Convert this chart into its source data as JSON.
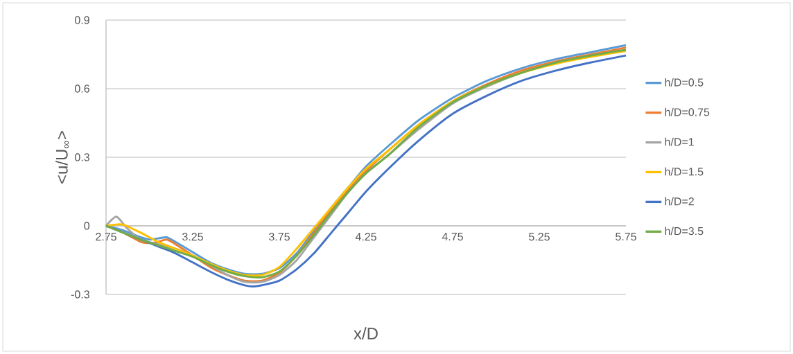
{
  "chart_data": {
    "type": "line",
    "xlabel": "x/D",
    "ylabel": "<u/U$_{∞}$>",
    "xlim": [
      2.75,
      5.75
    ],
    "ylim": [
      -0.3,
      0.9
    ],
    "xticks": [
      2.75,
      3.25,
      3.75,
      4.25,
      4.75,
      5.25,
      5.75
    ],
    "yticks": [
      -0.3,
      0,
      0.3,
      0.6,
      0.9
    ],
    "grid": "y",
    "legend": "right",
    "marker": "none",
    "line_style": "solid",
    "series": [
      {
        "name": "h/D=0.5",
        "color": "#5b9bd5",
        "x": [
          2.75,
          2.85,
          2.95,
          3.0,
          3.05,
          3.1,
          3.15,
          3.25,
          3.35,
          3.45,
          3.55,
          3.65,
          3.75,
          3.85,
          3.95,
          4.05,
          4.15,
          4.25,
          4.38,
          4.55,
          4.75,
          4.95,
          5.15,
          5.35,
          5.55,
          5.75
        ],
        "values": [
          0,
          -0.02,
          -0.05,
          -0.06,
          -0.055,
          -0.05,
          -0.07,
          -0.115,
          -0.16,
          -0.19,
          -0.21,
          -0.21,
          -0.185,
          -0.12,
          -0.02,
          0.08,
          0.17,
          0.26,
          0.35,
          0.46,
          0.56,
          0.635,
          0.69,
          0.73,
          0.76,
          0.79
        ]
      },
      {
        "name": "h/D=0.75",
        "color": "#ed7d31",
        "x": [
          2.75,
          2.85,
          2.95,
          3.0,
          3.05,
          3.1,
          3.15,
          3.25,
          3.35,
          3.45,
          3.55,
          3.65,
          3.75,
          3.85,
          3.95,
          4.05,
          4.15,
          4.25,
          4.38,
          4.55,
          4.75,
          4.95,
          5.15,
          5.35,
          5.55,
          5.75
        ],
        "values": [
          0,
          -0.03,
          -0.07,
          -0.075,
          -0.07,
          -0.06,
          -0.08,
          -0.13,
          -0.18,
          -0.215,
          -0.24,
          -0.24,
          -0.205,
          -0.13,
          -0.03,
          0.07,
          0.16,
          0.24,
          0.33,
          0.44,
          0.545,
          0.62,
          0.68,
          0.72,
          0.75,
          0.78
        ]
      },
      {
        "name": "h/D=1",
        "color": "#a5a5a5",
        "x": [
          2.75,
          2.81,
          2.87,
          2.95,
          3.05,
          3.15,
          3.25,
          3.35,
          3.45,
          3.55,
          3.65,
          3.75,
          3.85,
          3.95,
          4.05,
          4.15,
          4.25,
          4.38,
          4.55,
          4.75,
          4.95,
          5.15,
          5.35,
          5.55,
          5.75
        ],
        "values": [
          0,
          0.04,
          -0.01,
          -0.06,
          -0.08,
          -0.1,
          -0.13,
          -0.17,
          -0.215,
          -0.245,
          -0.245,
          -0.215,
          -0.15,
          -0.05,
          0.05,
          0.15,
          0.23,
          0.31,
          0.42,
          0.535,
          0.61,
          0.67,
          0.715,
          0.745,
          0.77
        ]
      },
      {
        "name": "h/D=1.5",
        "color": "#ffc000",
        "x": [
          2.75,
          2.8,
          2.85,
          2.95,
          3.05,
          3.15,
          3.25,
          3.35,
          3.45,
          3.55,
          3.65,
          3.75,
          3.85,
          3.95,
          4.05,
          4.15,
          4.25,
          4.38,
          4.55,
          4.75,
          4.95,
          5.15,
          5.35,
          5.55,
          5.75
        ],
        "values": [
          0,
          0.005,
          0.005,
          -0.03,
          -0.07,
          -0.1,
          -0.13,
          -0.165,
          -0.195,
          -0.215,
          -0.215,
          -0.18,
          -0.1,
          -0.01,
          0.08,
          0.17,
          0.25,
          0.33,
          0.44,
          0.545,
          0.615,
          0.67,
          0.71,
          0.74,
          0.765
        ]
      },
      {
        "name": "h/D=2",
        "color": "#4472c4",
        "x": [
          2.75,
          2.85,
          2.95,
          3.05,
          3.15,
          3.25,
          3.35,
          3.45,
          3.55,
          3.6,
          3.65,
          3.75,
          3.85,
          3.95,
          4.05,
          4.15,
          4.25,
          4.38,
          4.55,
          4.75,
          4.95,
          5.15,
          5.35,
          5.55,
          5.75
        ],
        "values": [
          0,
          -0.03,
          -0.06,
          -0.09,
          -0.12,
          -0.16,
          -0.2,
          -0.235,
          -0.26,
          -0.265,
          -0.26,
          -0.24,
          -0.19,
          -0.12,
          -0.03,
          0.06,
          0.15,
          0.25,
          0.37,
          0.49,
          0.57,
          0.635,
          0.68,
          0.715,
          0.745
        ]
      },
      {
        "name": "h/D=3.5",
        "color": "#70ad47",
        "x": [
          2.75,
          2.85,
          2.95,
          3.05,
          3.15,
          3.25,
          3.35,
          3.45,
          3.55,
          3.65,
          3.75,
          3.85,
          3.95,
          4.05,
          4.15,
          4.25,
          4.38,
          4.55,
          4.75,
          4.95,
          5.15,
          5.35,
          5.55,
          5.75
        ],
        "values": [
          0,
          -0.03,
          -0.06,
          -0.085,
          -0.11,
          -0.135,
          -0.17,
          -0.2,
          -0.22,
          -0.225,
          -0.2,
          -0.13,
          -0.04,
          0.06,
          0.15,
          0.23,
          0.31,
          0.43,
          0.54,
          0.615,
          0.67,
          0.715,
          0.745,
          0.77
        ]
      }
    ]
  }
}
